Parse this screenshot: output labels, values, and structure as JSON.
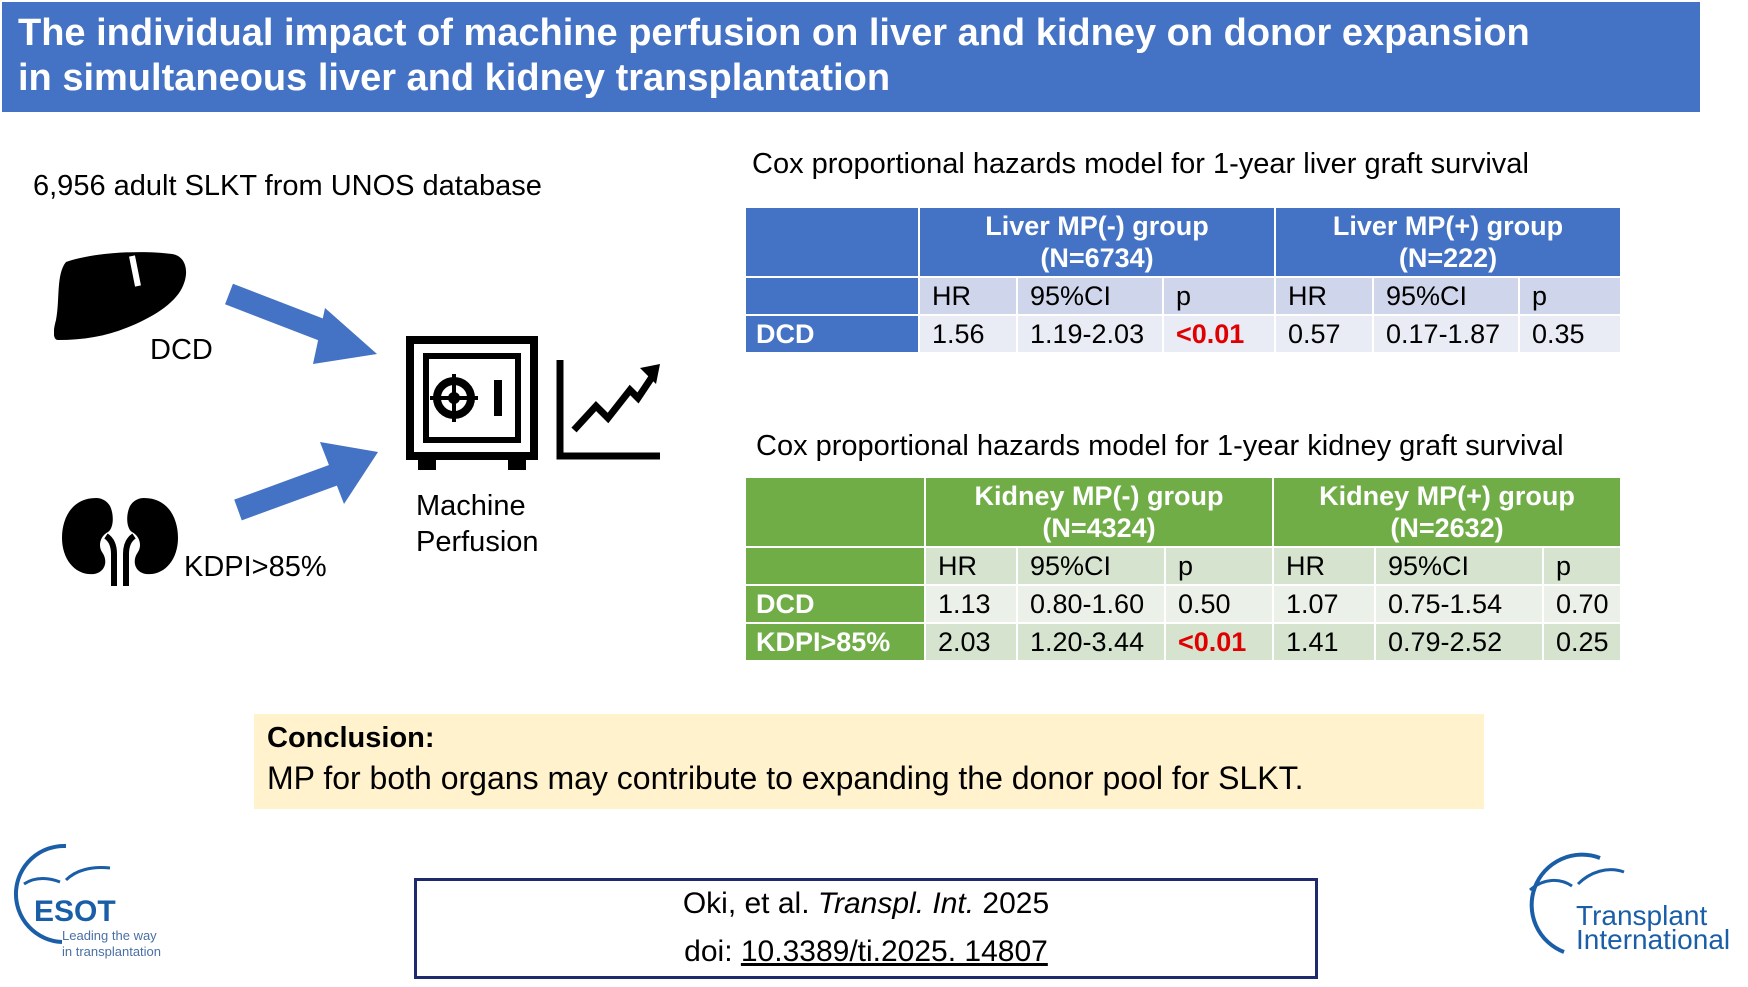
{
  "title": {
    "line1": "The individual impact of machine perfusion on liver and kidney on donor expansion",
    "line2": "in simultaneous liver and kidney transplantation"
  },
  "cohort_text": "6,956 adult SLKT from UNOS database",
  "diagram": {
    "dcd_label": "DCD",
    "kdpi_label": "KDPI>85%",
    "mp_label_line1": "Machine",
    "mp_label_line2": "Perfusion",
    "icons": [
      "liver-icon",
      "kidney-icon",
      "machine-perfusion-icon",
      "trend-up-chart-icon",
      "arrow-icon"
    ]
  },
  "liver_table": {
    "caption": "Cox proportional hazards model for 1-year liver graft survival",
    "group1_line1": "Liver MP(-) group",
    "group1_line2": "(N=6734)",
    "group2_line1": "Liver MP(+) group",
    "group2_line2": "(N=222)",
    "col_headers": [
      "HR",
      "95%CI",
      "p",
      "HR",
      "95%CI",
      "p"
    ],
    "rows": [
      {
        "label": "DCD",
        "cells": [
          "1.56",
          "1.19-2.03",
          "<0.01",
          "0.57",
          "0.17-1.87",
          "0.35"
        ]
      }
    ]
  },
  "kidney_table": {
    "caption": "Cox proportional hazards model for 1-year kidney graft survival",
    "group1_line1": "Kidney MP(-) group",
    "group1_line2": "(N=4324)",
    "group2_line1": "Kidney MP(+) group",
    "group2_line2": "(N=2632)",
    "col_headers": [
      "HR",
      "95%CI",
      "p",
      "HR",
      "95%CI",
      "p"
    ],
    "rows": [
      {
        "label": "DCD",
        "cells": [
          "1.13",
          "0.80-1.60",
          "0.50",
          "1.07",
          "0.75-1.54",
          "0.70"
        ]
      },
      {
        "label": "KDPI>85%",
        "cells": [
          "2.03",
          "1.20-3.44",
          "<0.01",
          "1.41",
          "0.79-2.52",
          "0.25"
        ]
      }
    ]
  },
  "conclusion": {
    "heading": "Conclusion:",
    "text": "MP for both organs may contribute to expanding the donor pool for SLKT."
  },
  "citation": {
    "authors": "Oki, et al.",
    "journal": "Transpl. Int.",
    "year": "2025",
    "doi_prefix": "doi:",
    "doi": "10.3389/ti.2025. 14807"
  },
  "logos": {
    "esot_name": "ESOT",
    "esot_tag1": "Leading the way",
    "esot_tag2": "in transplantation",
    "ti_line1": "Transplant",
    "ti_line2": "International"
  },
  "colors": {
    "banner": "#4472c4",
    "liver_header": "#4472c4",
    "kidney_header": "#70ad47",
    "arrow": "#4472c4",
    "significant": "#e00000",
    "conclusion_bg": "#fff2cc",
    "citation_border": "#1f2a6e",
    "logo_blue": "#1b5ea8"
  }
}
